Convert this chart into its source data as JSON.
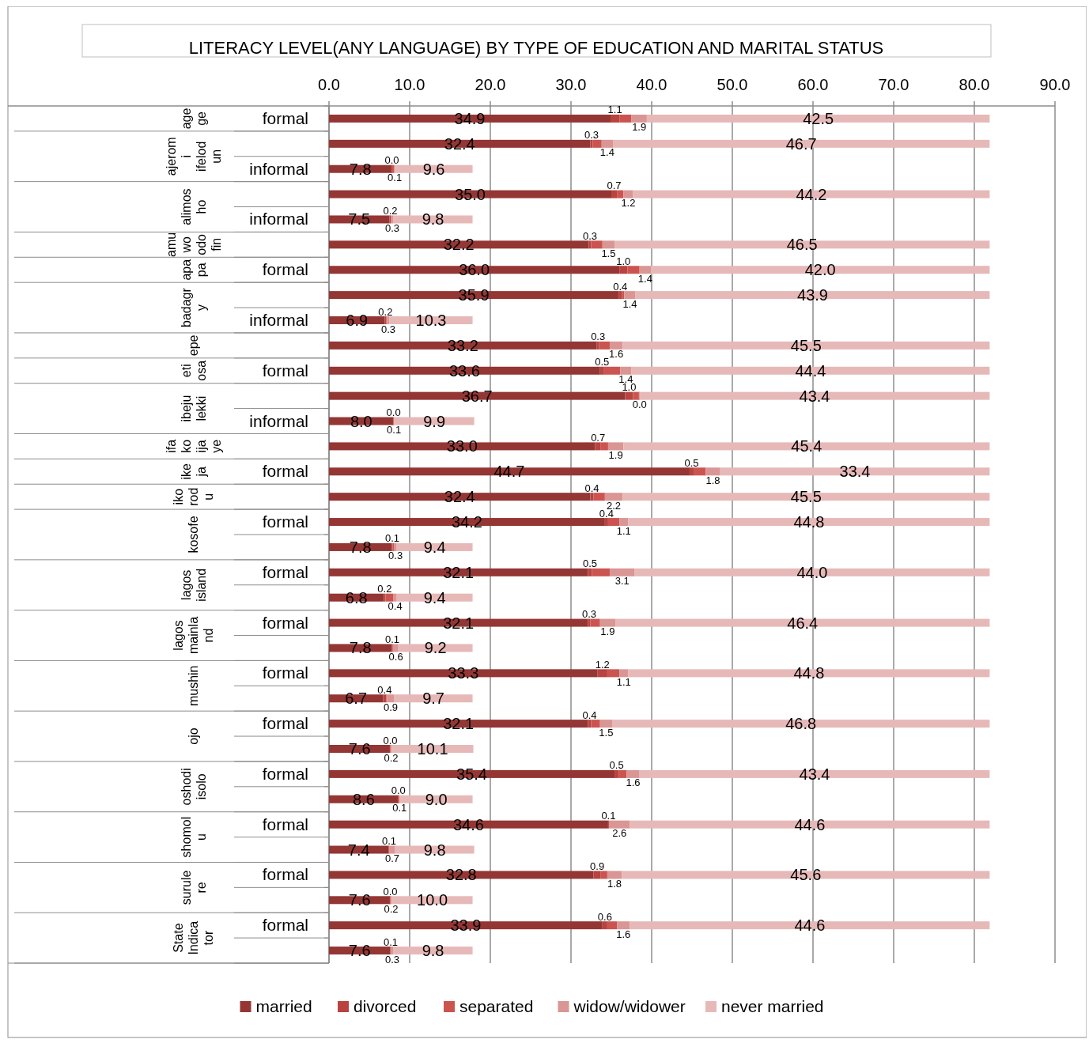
{
  "chart_data": {
    "type": "bar",
    "orientation": "horizontal",
    "stacked": true,
    "title": "LITERACY LEVEL(ANY LANGUAGE) BY TYPE OF EDUCATION AND MARITAL STATUS",
    "categories": [
      "formal",
      null,
      "informal",
      null,
      "informal",
      null,
      "formal",
      null,
      "informal",
      null,
      "formal",
      null,
      "informal",
      null,
      "formal",
      null,
      "formal",
      null,
      "formal",
      null,
      "formal",
      null,
      "formal",
      null,
      "formal",
      null,
      "formal",
      null,
      "formal",
      null,
      "formal",
      null,
      "formal",
      null
    ],
    "annotations": [
      "agege",
      "ajeromi ifelodun",
      "alimosho",
      "amuwo odofin",
      "apapa",
      "badagry",
      "epe",
      "eti osa",
      "ibeju lekki",
      "ifako ijaye",
      "ikeja",
      "ikorodu",
      "kosofe",
      "lagos island",
      "lagos mainland",
      "mushin",
      "ojo",
      "oshodi isolo",
      "shomolu",
      "surulere",
      "State Indicator"
    ],
    "series": [
      {
        "name": "married",
        "color": "#943634",
        "values": [
          34.9,
          32.4,
          7.8,
          35.0,
          7.5,
          32.2,
          36.0,
          35.9,
          6.9,
          33.2,
          33.6,
          36.7,
          8.0,
          33.0,
          44.7,
          32.4,
          34.2,
          7.8,
          32.1,
          6.8,
          32.1,
          7.8,
          33.3,
          6.7,
          32.1,
          7.6,
          35.4,
          8.6,
          34.6,
          7.4,
          32.8,
          7.6,
          33.9,
          7.6
        ],
        "value_labels": [
          "34.9",
          "32.4",
          "7.8",
          "35.0",
          "7.5",
          "32.2",
          "36.0",
          "35.9",
          "6.9",
          "33.2",
          "33.6",
          "36.7",
          "8.0",
          "33.0",
          "44.7",
          "32.4",
          "34.2",
          "7.8",
          "32.1",
          "6.8",
          "32.1",
          "7.8",
          "33.3",
          "6.7",
          "32.1",
          "7.6",
          "35.4",
          "8.6",
          "34.6",
          "7.4",
          "32.8",
          "7.6",
          "33.9",
          "7.6"
        ]
      },
      {
        "name": "divorced",
        "color": "#b8433f",
        "values": [
          1.1,
          0.3,
          0.0,
          0.7,
          0.2,
          0.3,
          1.0,
          0.4,
          0.2,
          0.3,
          0.5,
          1.0,
          0.0,
          0.7,
          0.5,
          0.4,
          0.4,
          0.1,
          0.5,
          0.2,
          0.3,
          0.1,
          1.2,
          0.4,
          0.4,
          0.0,
          0.5,
          0.0,
          0.1,
          0.1,
          0.9,
          0.0,
          0.6,
          0.1
        ],
        "value_labels": [
          "1.1",
          "0.3",
          "0.0",
          "0.7",
          "0.2",
          "0.3",
          "1.0",
          "0.4",
          "0.2",
          "0.3",
          "0.5",
          "1.0",
          "0.0",
          "0.7",
          "0.5",
          "0.4",
          "0.4",
          "0.1",
          "0.5",
          "0.2",
          "0.3",
          "0.1",
          "1.2",
          "0.4",
          "0.4",
          "0.0",
          "0.5",
          "0.0",
          "0.1",
          "0.1",
          "0.9",
          "0.0",
          "0.6",
          "0.1"
        ]
      },
      {
        "name": "separated",
        "color": "#cc5450",
        "values": [
          1.5,
          1.1,
          0.3,
          0.8,
          0.0,
          1.4,
          1.5,
          0.3,
          0.1,
          1.3,
          2.0,
          0.8,
          0.0,
          0.9,
          1.5,
          1.4,
          1.4,
          0.2,
          2.2,
          1.0,
          1.2,
          0.1,
          1.5,
          0.1,
          1.1,
          0.0,
          1.0,
          0.1,
          0.0,
          0.0,
          0.8,
          0.0,
          1.2,
          0.0
        ]
      },
      {
        "name": "widow/widower",
        "color": "#d99694",
        "values": [
          1.9,
          1.4,
          0.1,
          1.2,
          0.3,
          1.5,
          1.4,
          1.4,
          0.3,
          1.6,
          1.4,
          0.0,
          0.1,
          1.9,
          1.8,
          2.2,
          1.1,
          0.3,
          3.1,
          0.4,
          1.9,
          0.6,
          1.1,
          0.9,
          1.5,
          0.2,
          1.6,
          0.1,
          2.6,
          0.7,
          1.8,
          0.2,
          1.6,
          0.3
        ],
        "value_labels": [
          "1.9",
          "1.4",
          "0.1",
          "1.2",
          "0.3",
          "1.5",
          "1.4",
          "1.4",
          "0.3",
          "1.6",
          "1.4",
          "0.0",
          "0.1",
          "1.9",
          "1.8",
          "2.2",
          "1.1",
          "0.3",
          "3.1",
          "0.4",
          "1.9",
          "0.6",
          "1.1",
          "0.9",
          "1.5",
          "0.2",
          "1.6",
          "0.1",
          "2.6",
          "0.7",
          "1.8",
          "0.2",
          "1.6",
          "0.3"
        ]
      },
      {
        "name": "never married",
        "color": "#e6b9b8",
        "values": [
          42.5,
          46.7,
          9.6,
          44.2,
          9.8,
          46.5,
          42.0,
          43.9,
          10.3,
          45.5,
          44.4,
          43.4,
          9.9,
          45.4,
          33.4,
          45.5,
          44.8,
          9.4,
          44.0,
          9.4,
          46.4,
          9.2,
          44.8,
          9.7,
          46.8,
          10.1,
          43.4,
          9.0,
          44.6,
          9.8,
          45.6,
          10.0,
          44.6,
          9.8
        ],
        "value_labels": [
          "42.5",
          "46.7",
          "9.6",
          "44.2",
          "9.8",
          "46.5",
          "42.0",
          "43.9",
          "10.3",
          "45.5",
          "44.4",
          "43.4",
          "9.9",
          "45.4",
          "33.4",
          "45.5",
          "44.8",
          "9.4",
          "44.0",
          "9.4",
          "46.4",
          "9.2",
          "44.8",
          "9.7",
          "46.8",
          "10.1",
          "43.4",
          "9.0",
          "44.6",
          "9.8",
          "45.6",
          "10.0",
          "44.6",
          "9.8"
        ]
      }
    ],
    "xlim": [
      0,
      90
    ],
    "xticks": [
      {
        "value": 0,
        "label": "0.0"
      },
      {
        "value": 10,
        "label": "10.0"
      },
      {
        "value": 20,
        "label": "20.0"
      },
      {
        "value": 30,
        "label": "30.0"
      },
      {
        "value": 40,
        "label": "40.0"
      },
      {
        "value": 50,
        "label": "50.0"
      },
      {
        "value": 60,
        "label": "60.0"
      },
      {
        "value": 70,
        "label": "70.0"
      },
      {
        "value": 80,
        "label": "80.0"
      },
      {
        "value": 90,
        "label": "90.0"
      }
    ],
    "grid": "x",
    "legend": "bottom"
  }
}
